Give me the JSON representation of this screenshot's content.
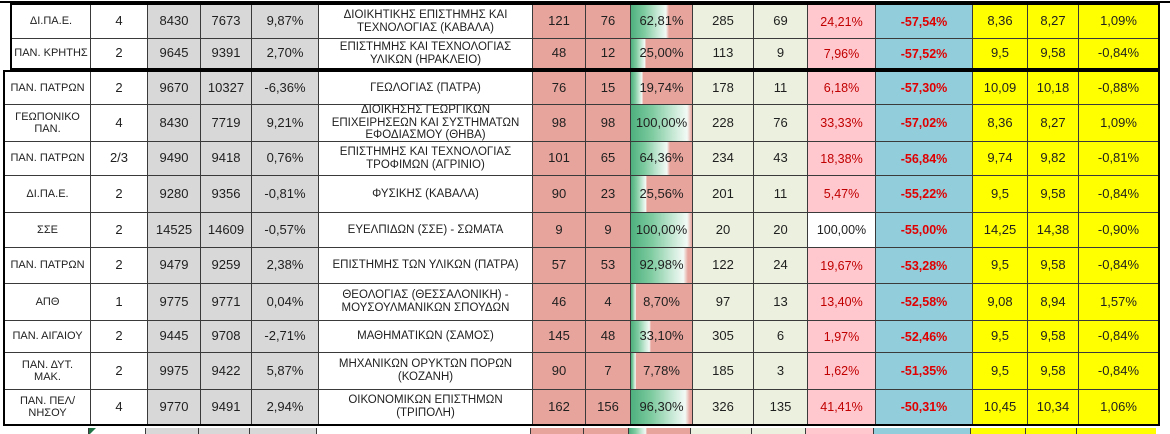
{
  "colors": {
    "gray_fill": "#D8D8D8",
    "salmon_fill": "#E7A49C",
    "data_bar_green": "#4EB07E",
    "light_green_fill": "#EBF1DE",
    "pink_fill": "#FFC7CE",
    "pink_text": "#C00000",
    "blue_fill": "#92CDDC",
    "blue_text": "#E00000",
    "yellow_fill": "#FFFF00",
    "flag_green": "#217346"
  },
  "table": {
    "rows": [
      {
        "uni": "ΔΙ.ΠΑ.Ε.",
        "flag": true,
        "count": "4",
        "v1": "8430",
        "v2": "7673",
        "chg": "9,87%",
        "dept": "ΔΙΟΙΚΗΤΙΚΗΣ ΕΠΙΣΤΗΜΗΣ ΚΑΙ ΤΕΧΝΟΛΟΓΙΑΣ (ΚΑΒΑΛΑ)",
        "n1": "121",
        "n2": "76",
        "fill": "62,81%",
        "fill_value": 62.81,
        "m1": "285",
        "m2": "69",
        "pink": "24,21%",
        "pink_plain": false,
        "blue": "-57,54%",
        "s1": "8,36",
        "s2": "8,27",
        "schg": "1,09%"
      },
      {
        "uni": "ΠΑΝ. ΚΡΗΤΗΣ",
        "flag": true,
        "count": "2",
        "v1": "9645",
        "v2": "9391",
        "chg": "2,70%",
        "dept": "ΕΠΙΣΤΗΜΗΣ ΚΑΙ ΤΕΧΝΟΛΟΓΙΑΣ ΥΛΙΚΩΝ (ΗΡΑΚΛΕΙΟ)",
        "n1": "48",
        "n2": "12",
        "fill": "25,00%",
        "fill_value": 25.0,
        "m1": "113",
        "m2": "9",
        "pink": "7,96%",
        "pink_plain": false,
        "blue": "-57,52%",
        "s1": "9,5",
        "s2": "9,58",
        "schg": "-0,84%"
      },
      {
        "uni": "ΠΑΝ. ΠΑΤΡΩΝ",
        "flag": true,
        "count": "2",
        "v1": "9670",
        "v2": "10327",
        "chg": "-6,36%",
        "dept": "ΓΕΩΛΟΓΙΑΣ (ΠΑΤΡΑ)",
        "n1": "76",
        "n2": "15",
        "fill": "19,74%",
        "fill_value": 19.74,
        "m1": "178",
        "m2": "11",
        "pink": "6,18%",
        "pink_plain": false,
        "blue": "-57,30%",
        "s1": "10,09",
        "s2": "10,18",
        "schg": "-0,88%"
      },
      {
        "uni": "ΓΕΩΠΟΝΙΚΟ ΠΑΝ.",
        "flag": true,
        "count": "4",
        "v1": "8430",
        "v2": "7719",
        "chg": "9,21%",
        "dept": "ΔΙΟΙΚΗΣΗΣ ΓΕΩΡΓΙΚΩΝ ΕΠΙΧΕΙΡΗΣΕΩΝ ΚΑΙ ΣΥΣΤΗΜΑΤΩΝ ΕΦΟΔΙΑΣΜΟΥ (ΘΗΒΑ)",
        "n1": "98",
        "n2": "98",
        "fill": "100,00%",
        "fill_value": 100.0,
        "m1": "228",
        "m2": "76",
        "pink": "33,33%",
        "pink_plain": false,
        "blue": "-57,02%",
        "s1": "8,36",
        "s2": "8,27",
        "schg": "1,09%"
      },
      {
        "uni": "ΠΑΝ. ΠΑΤΡΩΝ",
        "flag": false,
        "count": "2/3",
        "v1": "9490",
        "v2": "9418",
        "chg": "0,76%",
        "dept": "ΕΠΙΣΤΗΜΗΣ ΚΑΙ ΤΕΧΝΟΛΟΓΙΑΣ ΤΡΟΦΙΜΩΝ (ΑΓΡΙΝΙΟ)",
        "n1": "101",
        "n2": "65",
        "fill": "64,36%",
        "fill_value": 64.36,
        "m1": "234",
        "m2": "43",
        "pink": "18,38%",
        "pink_plain": false,
        "blue": "-56,84%",
        "s1": "9,74",
        "s2": "9,82",
        "schg": "-0,81%"
      },
      {
        "uni": "ΔΙ.ΠΑ.Ε.",
        "flag": true,
        "count": "2",
        "v1": "9280",
        "v2": "9356",
        "chg": "-0,81%",
        "dept": "ΦΥΣΙΚΗΣ (ΚΑΒΑΛΑ)",
        "n1": "90",
        "n2": "23",
        "fill": "25,56%",
        "fill_value": 25.56,
        "m1": "201",
        "m2": "11",
        "pink": "5,47%",
        "pink_plain": false,
        "blue": "-55,22%",
        "s1": "9,5",
        "s2": "9,58",
        "schg": "-0,84%"
      },
      {
        "uni": "ΣΣΕ",
        "flag": true,
        "count": "2",
        "v1": "14525",
        "v2": "14609",
        "chg": "-0,57%",
        "dept": "ΕΥΕΛΠΙΔΩΝ (ΣΣΕ) - ΣΩΜΑΤΑ",
        "n1": "9",
        "n2": "9",
        "fill": "100,00%",
        "fill_value": 100.0,
        "m1": "20",
        "m2": "20",
        "pink": "100,00%",
        "pink_plain": true,
        "blue": "-55,00%",
        "s1": "14,25",
        "s2": "14,38",
        "schg": "-0,90%"
      },
      {
        "uni": "ΠΑΝ. ΠΑΤΡΩΝ",
        "flag": true,
        "count": "2",
        "v1": "9479",
        "v2": "9259",
        "chg": "2,38%",
        "dept": "ΕΠΙΣΤΗΜΗΣ ΤΩΝ ΥΛΙΚΩΝ (ΠΑΤΡΑ)",
        "n1": "57",
        "n2": "53",
        "fill": "92,98%",
        "fill_value": 92.98,
        "m1": "122",
        "m2": "24",
        "pink": "19,67%",
        "pink_plain": false,
        "blue": "-53,28%",
        "s1": "9,5",
        "s2": "9,58",
        "schg": "-0,84%"
      },
      {
        "uni": "ΑΠΘ",
        "flag": false,
        "count": "1",
        "v1": "9775",
        "v2": "9771",
        "chg": "0,04%",
        "dept": "ΘΕΟΛΟΓΙΑΣ (ΘΕΣΣΑΛΟΝΙΚΗ) - ΜΟΥΣΟΥΛΜΑΝΙΚΩΝ ΣΠΟΥΔΩΝ",
        "n1": "46",
        "n2": "4",
        "fill": "8,70%",
        "fill_value": 8.7,
        "m1": "97",
        "m2": "13",
        "pink": "13,40%",
        "pink_plain": false,
        "blue": "-52,58%",
        "s1": "9,08",
        "s2": "8,94",
        "schg": "1,57%"
      },
      {
        "uni": "ΠΑΝ. ΑΙΓΑΙΟΥ",
        "flag": true,
        "count": "2",
        "v1": "9445",
        "v2": "9708",
        "chg": "-2,71%",
        "dept": "ΜΑΘΗΜΑΤΙΚΩΝ (ΣΑΜΟΣ)",
        "n1": "145",
        "n2": "48",
        "fill": "33,10%",
        "fill_value": 33.1,
        "m1": "305",
        "m2": "6",
        "pink": "1,97%",
        "pink_plain": false,
        "blue": "-52,46%",
        "s1": "9,5",
        "s2": "9,58",
        "schg": "-0,84%"
      },
      {
        "uni": "ΠΑΝ. ΔΥΤ. ΜΑΚ.",
        "flag": true,
        "count": "2",
        "v1": "9975",
        "v2": "9422",
        "chg": "5,87%",
        "dept": "ΜΗΧΑΝΙΚΩΝ ΟΡΥΚΤΩΝ ΠΟΡΩΝ (ΚΟΖΑΝΗ)",
        "n1": "90",
        "n2": "7",
        "fill": "7,78%",
        "fill_value": 7.78,
        "m1": "185",
        "m2": "3",
        "pink": "1,62%",
        "pink_plain": false,
        "blue": "-51,35%",
        "s1": "9,5",
        "s2": "9,58",
        "schg": "-0,84%"
      },
      {
        "uni": "ΠΑΝ. ΠΕΛ/ΝΗΣΟΥ",
        "flag": true,
        "count": "4",
        "v1": "9770",
        "v2": "9491",
        "chg": "2,94%",
        "dept": "ΟΙΚΟΝΟΜΙΚΩΝ ΕΠΙΣΤΗΜΩΝ (ΤΡΙΠΟΛΗ)",
        "n1": "162",
        "n2": "156",
        "fill": "96,30%",
        "fill_value": 96.3,
        "m1": "326",
        "m2": "135",
        "pink": "41,41%",
        "pink_plain": false,
        "blue": "-50,31%",
        "s1": "10,45",
        "s2": "10,34",
        "schg": "1,06%"
      }
    ],
    "partial_next_row": {
      "visible": true,
      "flag": true
    }
  }
}
